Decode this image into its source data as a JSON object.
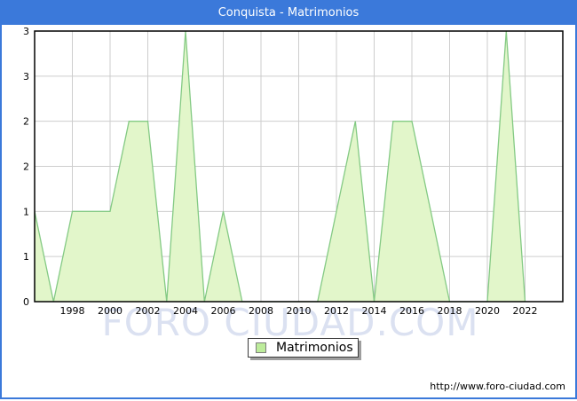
{
  "window": {
    "title": "Conquista - Matrimonios"
  },
  "chart_data": {
    "type": "area",
    "title": "Conquista - Matrimonios",
    "x": [
      1996,
      1997,
      1998,
      1999,
      2000,
      2001,
      2002,
      2003,
      2004,
      2005,
      2006,
      2007,
      2008,
      2009,
      2010,
      2011,
      2012,
      2013,
      2014,
      2015,
      2016,
      2017,
      2018,
      2019,
      2020,
      2021,
      2022
    ],
    "values": [
      1,
      0,
      1,
      1,
      1,
      2,
      2,
      0,
      3,
      0,
      1,
      0,
      0,
      0,
      0,
      0,
      1,
      2,
      0,
      2,
      2,
      1,
      0,
      0,
      0,
      3,
      0
    ],
    "series_name": "Matrimonios",
    "xlim": [
      1996,
      2024
    ],
    "ylim": [
      0,
      3
    ],
    "x_tick_labels": [
      "1998",
      "2000",
      "2002",
      "2004",
      "2006",
      "2008",
      "2010",
      "2012",
      "2014",
      "2016",
      "2018",
      "2020",
      "2022"
    ],
    "y_ticks": [
      {
        "value": 3,
        "label": "3"
      },
      {
        "value": 2.5,
        "label": "3"
      },
      {
        "value": 2,
        "label": "2"
      },
      {
        "value": 1.5,
        "label": "2"
      },
      {
        "value": 1,
        "label": "1"
      },
      {
        "value": 0.5,
        "label": "1"
      },
      {
        "value": 0,
        "label": "0"
      }
    ],
    "grid": true,
    "legend_position": "bottom-center"
  },
  "legend": {
    "label": "Matrimonios"
  },
  "watermark": "FORO CIUDAD.COM",
  "footer": {
    "url": "http://www.foro-ciudad.com"
  },
  "colors": {
    "frame_blue": "#3b79da",
    "title_text": "#ffffff",
    "plot_border": "#000000",
    "gridline": "#cdcdcd",
    "area_fill": "#e2f6ca",
    "area_line": "#84ca84",
    "legend_swatch": "#bdec9b",
    "watermark": "#dbe1f1"
  }
}
